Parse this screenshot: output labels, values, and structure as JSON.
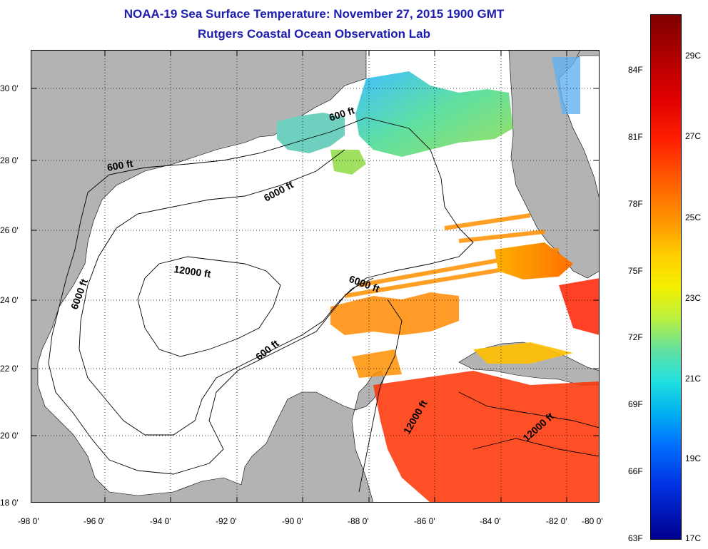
{
  "title": {
    "line1": "NOAA-19 Sea Surface Temperature:  November 27, 2015 1900 GMT",
    "line2": "Rutgers Coastal Ocean Observation Lab"
  },
  "axes": {
    "x_labels": [
      "-98 0'",
      "-96 0'",
      "-94 0'",
      "-92 0'",
      "-90 0'",
      "-88 0'",
      "-86 0'",
      "-84 0'",
      "-82 0'",
      "-80 0'"
    ],
    "y_labels": [
      "30 0'",
      "28 0'",
      "26 0'",
      "24 0'",
      "22 0'",
      "20 0'",
      "18 0'"
    ]
  },
  "contours": {
    "c600a": "600 ft",
    "c600b": "600 ft",
    "c600c": "600 ft",
    "c6000a": "6000 ft",
    "c6000b": "6000 ft",
    "c6000c": "6000 ft",
    "c12000a": "12000 ft",
    "c12000b": "12000 ft",
    "c12000c": "12000 ft"
  },
  "colorbar": {
    "fahrenheit": [
      "84F",
      "81F",
      "78F",
      "75F",
      "72F",
      "69F",
      "66F",
      "63F"
    ],
    "celsius": [
      "29C",
      "27C",
      "25C",
      "23C",
      "21C",
      "19C",
      "17C"
    ]
  },
  "colors": {
    "land": "#b3b3b3",
    "title": "#1c1cb0"
  }
}
